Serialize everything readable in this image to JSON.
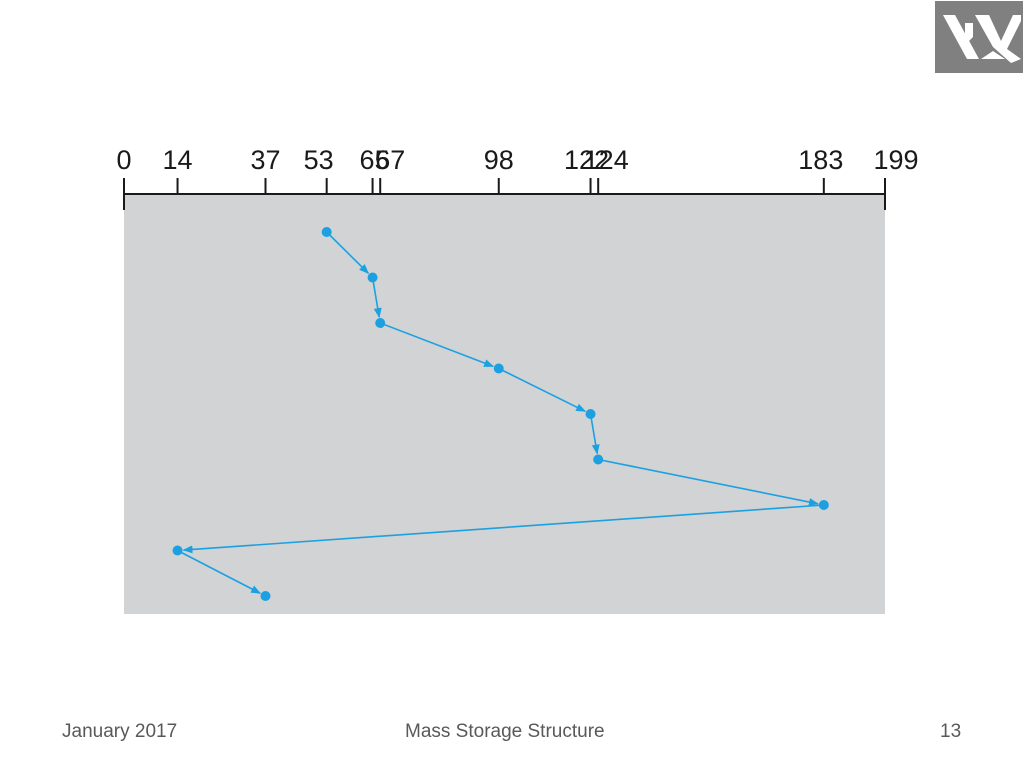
{
  "slide": {
    "footer_date": "January 2017",
    "footer_title": "Mass Storage Structure",
    "page_number": "13"
  },
  "colors": {
    "panel": "#d1d3d4",
    "path": "#1ba1e2",
    "axis": "#1a1a1a",
    "logo_bg": "#808080",
    "logo_fg": "#ffffff"
  },
  "logo": {
    "icon": "hebrew-letters-logo"
  },
  "diagram": {
    "type": "disk-head-scheduling-path",
    "cylinder_range": [
      0,
      199
    ],
    "tick_values": [
      0,
      14,
      37,
      53,
      65,
      67,
      98,
      122,
      124,
      183,
      199
    ],
    "service_order": [
      53,
      65,
      67,
      98,
      122,
      124,
      183,
      14,
      37
    ]
  }
}
